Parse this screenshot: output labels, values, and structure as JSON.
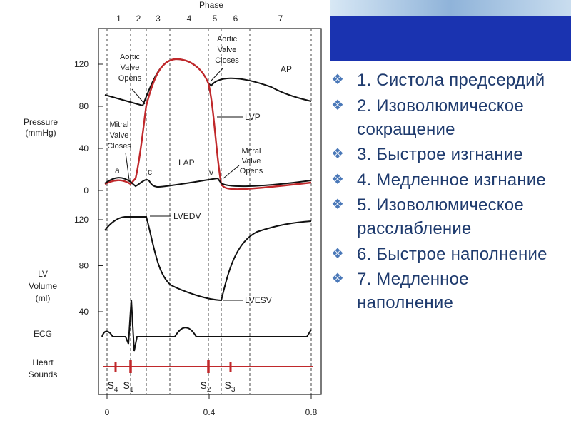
{
  "figure": {
    "phase_title": "Phase",
    "phases": [
      "1",
      "2",
      "3",
      "4",
      "5",
      "6",
      "7"
    ],
    "pressure_label": [
      "Pressure",
      "(mmHg)"
    ],
    "pressure_ticks": [
      0,
      40,
      80,
      120
    ],
    "volume_label": [
      "LV",
      "Volume",
      "(ml)"
    ],
    "volume_ticks": [
      40,
      80,
      120
    ],
    "time_ticks": [
      0,
      0.4,
      0.8
    ],
    "ecg_label": "ECG",
    "sounds_label": [
      "Heart",
      "Sounds"
    ],
    "aortic_opens": [
      "Aortic",
      "Valve",
      "Opens"
    ],
    "aortic_closes": [
      "Aortic",
      "Valve",
      "Closes"
    ],
    "mitral_closes": [
      "Mitral",
      "Valve",
      "Closes"
    ],
    "mitral_opens": [
      "Mitral",
      "Valve",
      "Opens"
    ],
    "ap": "AP",
    "lvp": "LVP",
    "lap": "LAP",
    "wave_a": "a",
    "wave_c": "c",
    "wave_v": "v",
    "lvedv": "LVEDV",
    "lvesv": "LVESV",
    "sounds": [
      {
        "letter": "S",
        "sub": "4"
      },
      {
        "letter": "S",
        "sub": "1"
      },
      {
        "letter": "S",
        "sub": "2"
      },
      {
        "letter": "S",
        "sub": "3"
      }
    ]
  },
  "list": [
    "1. Систола предсердий",
    "2. Изоволюмическое сокращение",
    "3. Быстрое изгнание",
    "4. Медленное изгнание",
    "5. Изоволюмическое расслабление",
    "6. Быстрое наполнение",
    "7. Медленное наполнение"
  ]
}
